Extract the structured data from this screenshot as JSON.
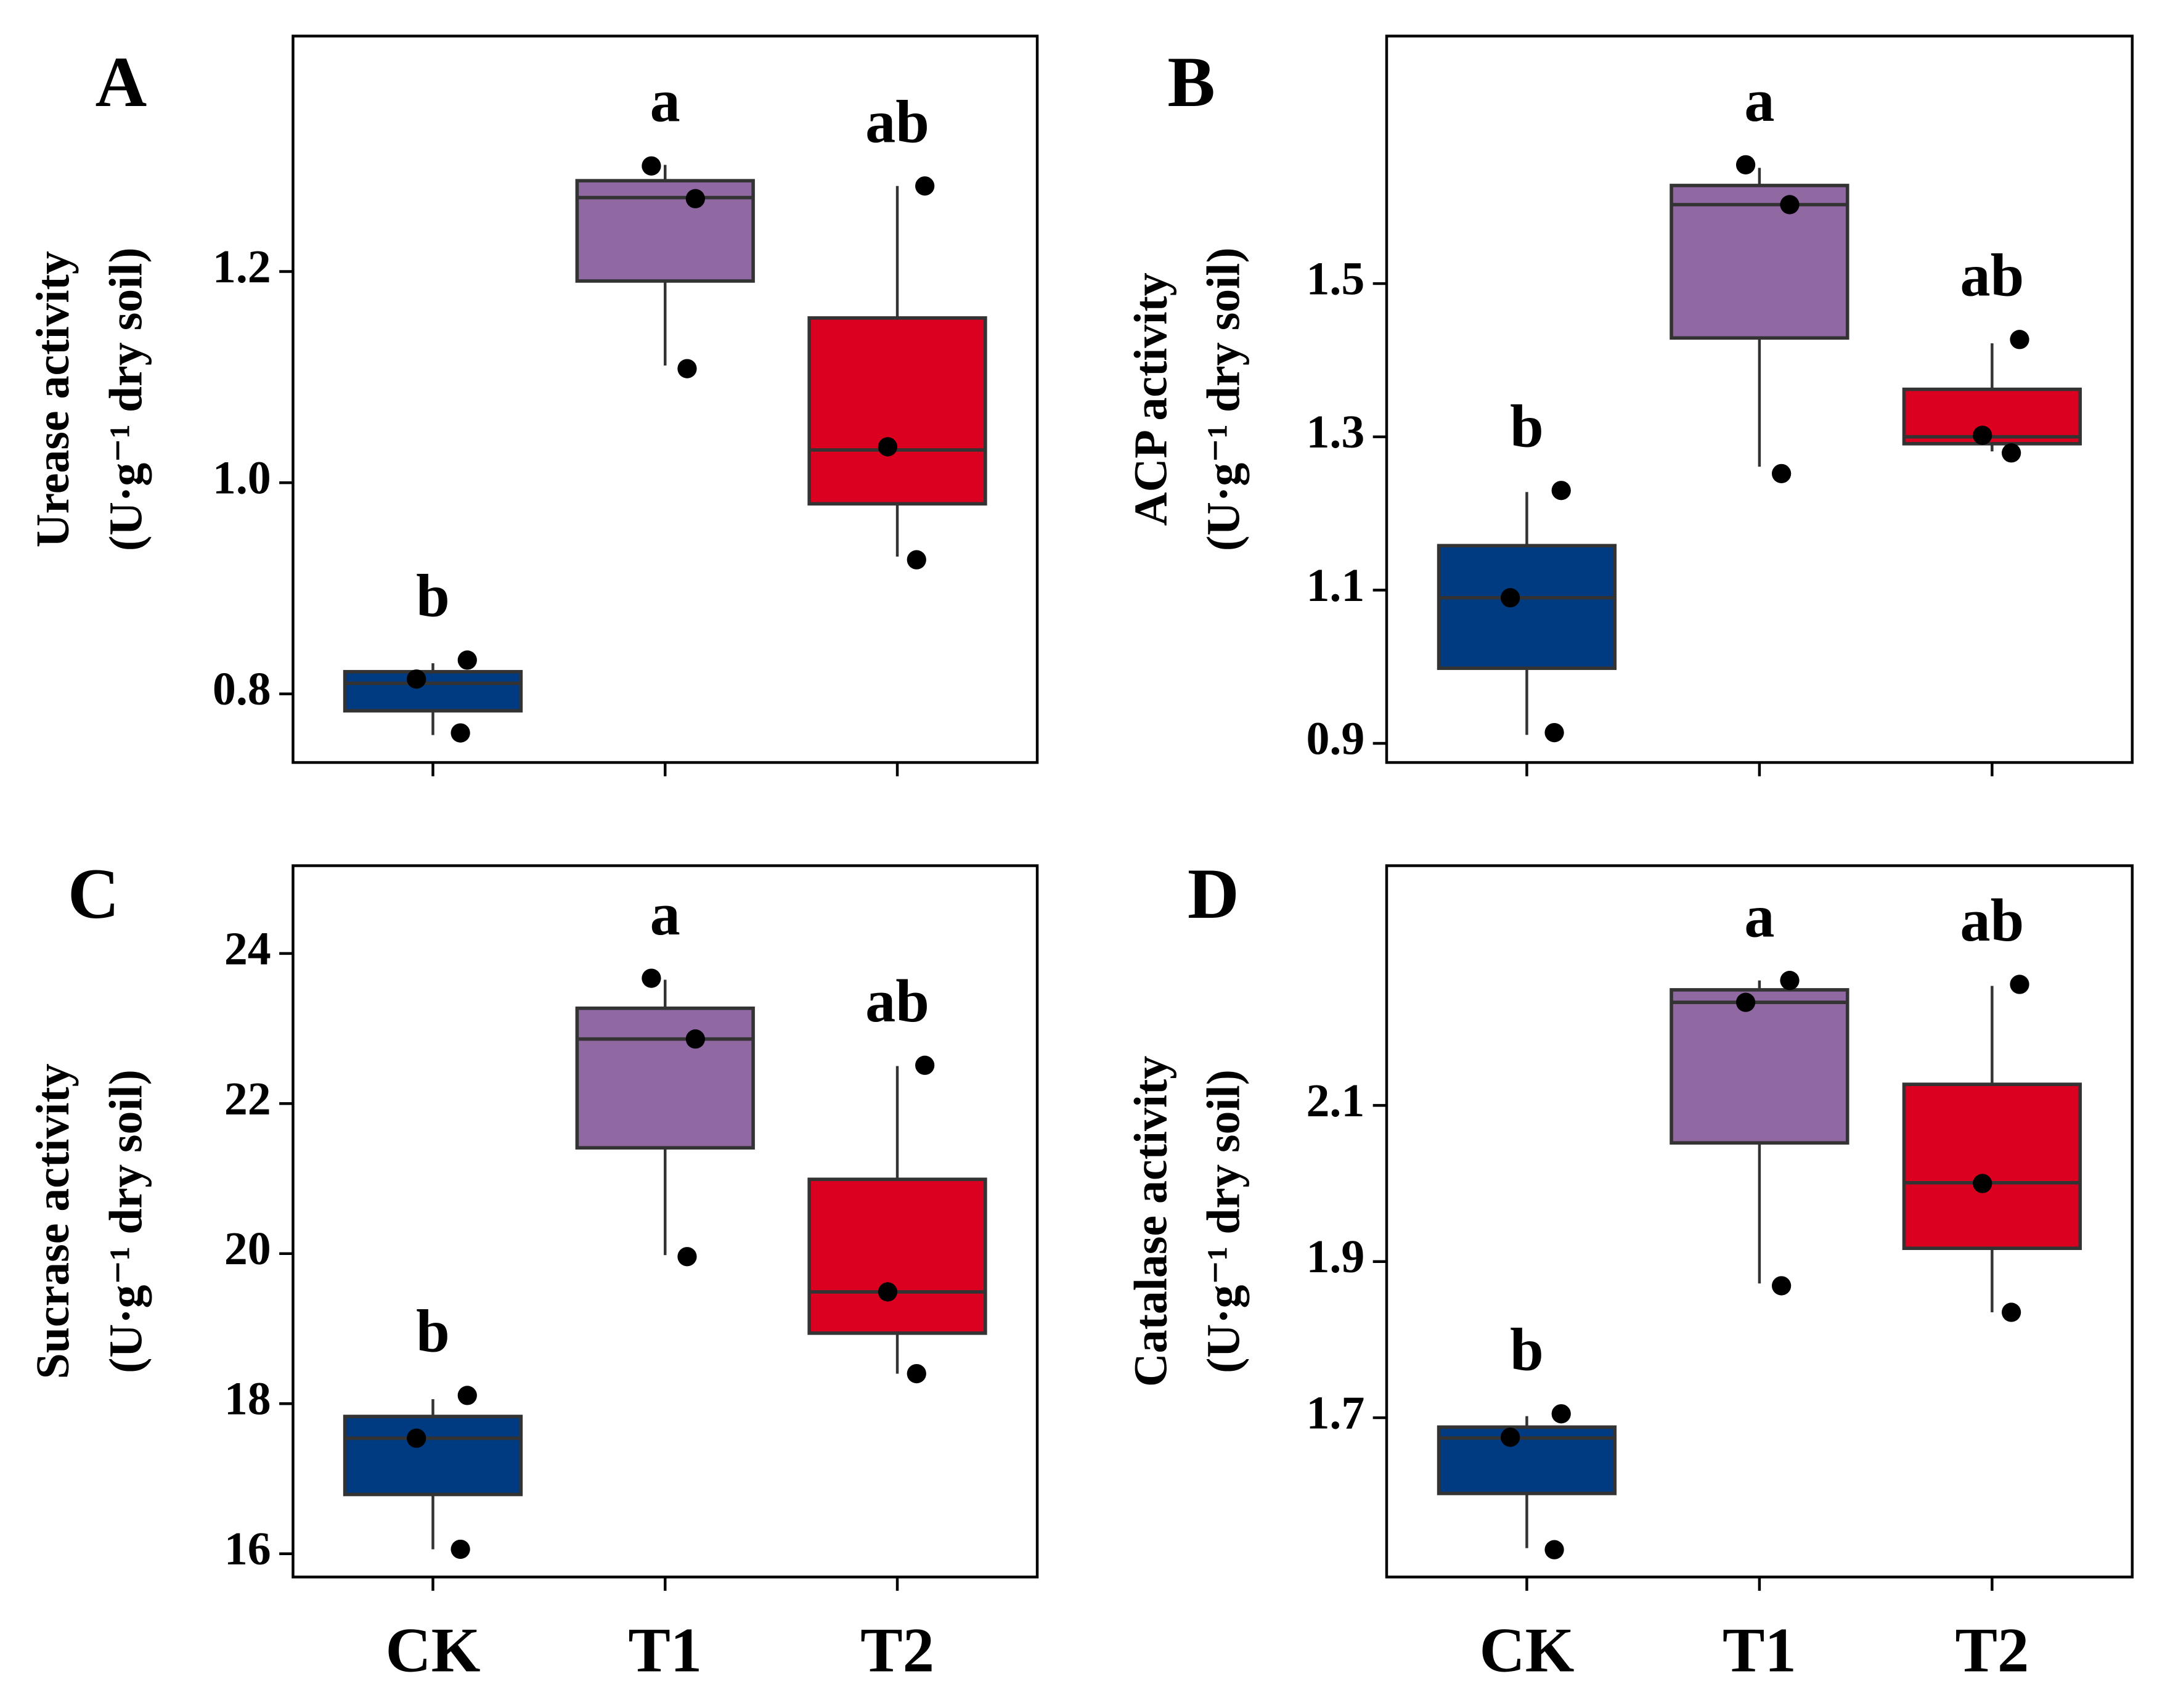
{
  "chart_data": [
    {
      "type": "box",
      "panel_label": "A",
      "ylabel": [
        "Urease activity",
        "(U·g⁻¹ dry soil)"
      ],
      "categories": [
        "CK",
        "T1",
        "T2"
      ],
      "x_tick_labels": false,
      "colors": [
        "#003a80",
        "#9069a3",
        "#dc0020"
      ],
      "ylim": [
        0.735,
        1.423
      ],
      "yticks": [
        0.8,
        {
          "value": 1.0,
          "label": "1.0"
        },
        1.2
      ],
      "boxes": [
        {
          "whisker_low": 0.761,
          "q1": 0.784,
          "median": 0.81,
          "q3": 0.821,
          "whisker_high": 0.829,
          "points": [
            0.832,
            0.814,
            0.763
          ],
          "letter": "b"
        },
        {
          "whisker_low": 1.111,
          "q1": 1.191,
          "median": 1.27,
          "q3": 1.286,
          "whisker_high": 1.301,
          "points": [
            1.3,
            1.269,
            1.108
          ],
          "letter": "a"
        },
        {
          "whisker_low": 0.93,
          "q1": 0.98,
          "median": 1.031,
          "q3": 1.156,
          "whisker_high": 1.281,
          "points": [
            1.281,
            1.034,
            0.927
          ],
          "letter": "ab"
        }
      ]
    },
    {
      "type": "box",
      "panel_label": "B",
      "ylabel": [
        "ACP activity",
        "(U·g⁻¹ dry soil)"
      ],
      "categories": [
        "CK",
        "T1",
        "T2"
      ],
      "x_tick_labels": false,
      "colors": [
        "#003a80",
        "#9069a3",
        "#dc0020"
      ],
      "ylim": [
        0.875,
        1.823
      ],
      "yticks": [
        0.9,
        1.1,
        1.3,
        1.5
      ],
      "boxes": [
        {
          "whisker_low": 0.911,
          "q1": 0.998,
          "median": 1.09,
          "q3": 1.158,
          "whisker_high": 1.228,
          "points": [
            1.23,
            1.09,
            0.914
          ],
          "letter": "b"
        },
        {
          "whisker_low": 1.261,
          "q1": 1.429,
          "median": 1.603,
          "q3": 1.628,
          "whisker_high": 1.651,
          "points": [
            1.655,
            1.603,
            1.252
          ],
          "letter": "a"
        },
        {
          "whisker_low": 1.281,
          "q1": 1.291,
          "median": 1.3,
          "q3": 1.362,
          "whisker_high": 1.422,
          "points": [
            1.427,
            1.302,
            1.279
          ],
          "letter": "ab"
        }
      ]
    },
    {
      "type": "box",
      "panel_label": "C",
      "ylabel": [
        "Sucrase activity",
        "(U·g⁻¹ dry soil)"
      ],
      "categories": [
        "CK",
        "T1",
        "T2"
      ],
      "x_tick_labels": true,
      "colors": [
        "#003a80",
        "#9069a3",
        "#dc0020"
      ],
      "ylim": [
        15.69,
        25.17
      ],
      "yticks": [
        16,
        18,
        20,
        22,
        24
      ],
      "boxes": [
        {
          "whisker_low": 16.06,
          "q1": 16.79,
          "median": 17.54,
          "q3": 17.83,
          "whisker_high": 18.06,
          "points": [
            18.11,
            17.54,
            16.06
          ],
          "letter": "b"
        },
        {
          "whisker_low": 19.98,
          "q1": 21.41,
          "median": 22.86,
          "q3": 23.27,
          "whisker_high": 23.65,
          "points": [
            23.67,
            22.86,
            19.96
          ],
          "letter": "a"
        },
        {
          "whisker_low": 18.4,
          "q1": 18.94,
          "median": 19.49,
          "q3": 20.99,
          "whisker_high": 22.5,
          "points": [
            22.51,
            19.49,
            18.4
          ],
          "letter": "ab"
        }
      ]
    },
    {
      "type": "box",
      "panel_label": "D",
      "ylabel": [
        "Catalase activity",
        "(U·g⁻¹ dry soil)"
      ],
      "categories": [
        "CK",
        "T1",
        "T2"
      ],
      "x_tick_labels": true,
      "colors": [
        "#003a80",
        "#9069a3",
        "#dc0020"
      ],
      "ylim": [
        1.496,
        2.407
      ],
      "yticks": [
        1.7,
        1.9,
        2.1
      ],
      "boxes": [
        {
          "whisker_low": 1.533,
          "q1": 1.603,
          "median": 1.674,
          "q3": 1.688,
          "whisker_high": 1.702,
          "points": [
            1.705,
            1.675,
            1.531
          ],
          "letter": "b"
        },
        {
          "whisker_low": 1.872,
          "q1": 2.052,
          "median": 2.232,
          "q3": 2.248,
          "whisker_high": 2.26,
          "points": [
            2.232,
            2.26,
            1.869
          ],
          "letter": "a"
        },
        {
          "whisker_low": 1.835,
          "q1": 1.917,
          "median": 2.001,
          "q3": 2.127,
          "whisker_high": 2.253,
          "points": [
            2.255,
            2.0,
            1.835
          ],
          "letter": "ab"
        }
      ]
    }
  ]
}
